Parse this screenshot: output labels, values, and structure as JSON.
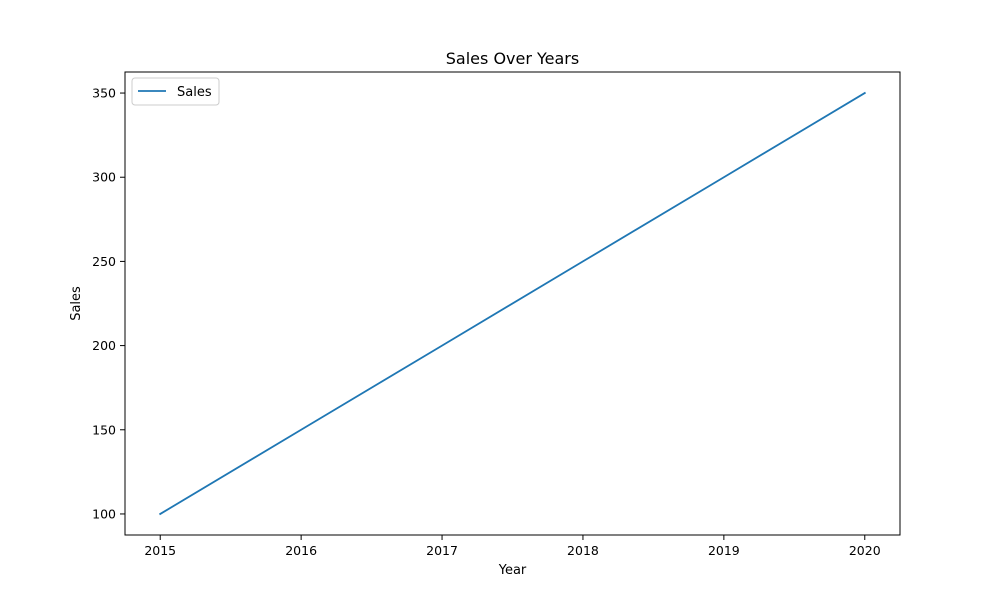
{
  "chart_data": {
    "type": "line",
    "title": "Sales Over Years",
    "xlabel": "Year",
    "ylabel": "Sales",
    "x": [
      2015,
      2016,
      2017,
      2018,
      2019,
      2020
    ],
    "x_tick_labels": [
      "2015",
      "2016",
      "2017",
      "2018",
      "2019",
      "2020"
    ],
    "y_ticks": [
      100,
      150,
      200,
      250,
      300,
      350
    ],
    "y_tick_labels": [
      "100",
      "150",
      "200",
      "250",
      "300",
      "350"
    ],
    "xlim": [
      2014.75,
      2020.25
    ],
    "ylim": [
      87.5,
      362.5
    ],
    "grid": false,
    "legend_position": "top-left",
    "series": [
      {
        "name": "Sales",
        "color": "#1f77b4",
        "values": [
          100,
          150,
          200,
          250,
          300,
          350
        ]
      }
    ]
  }
}
